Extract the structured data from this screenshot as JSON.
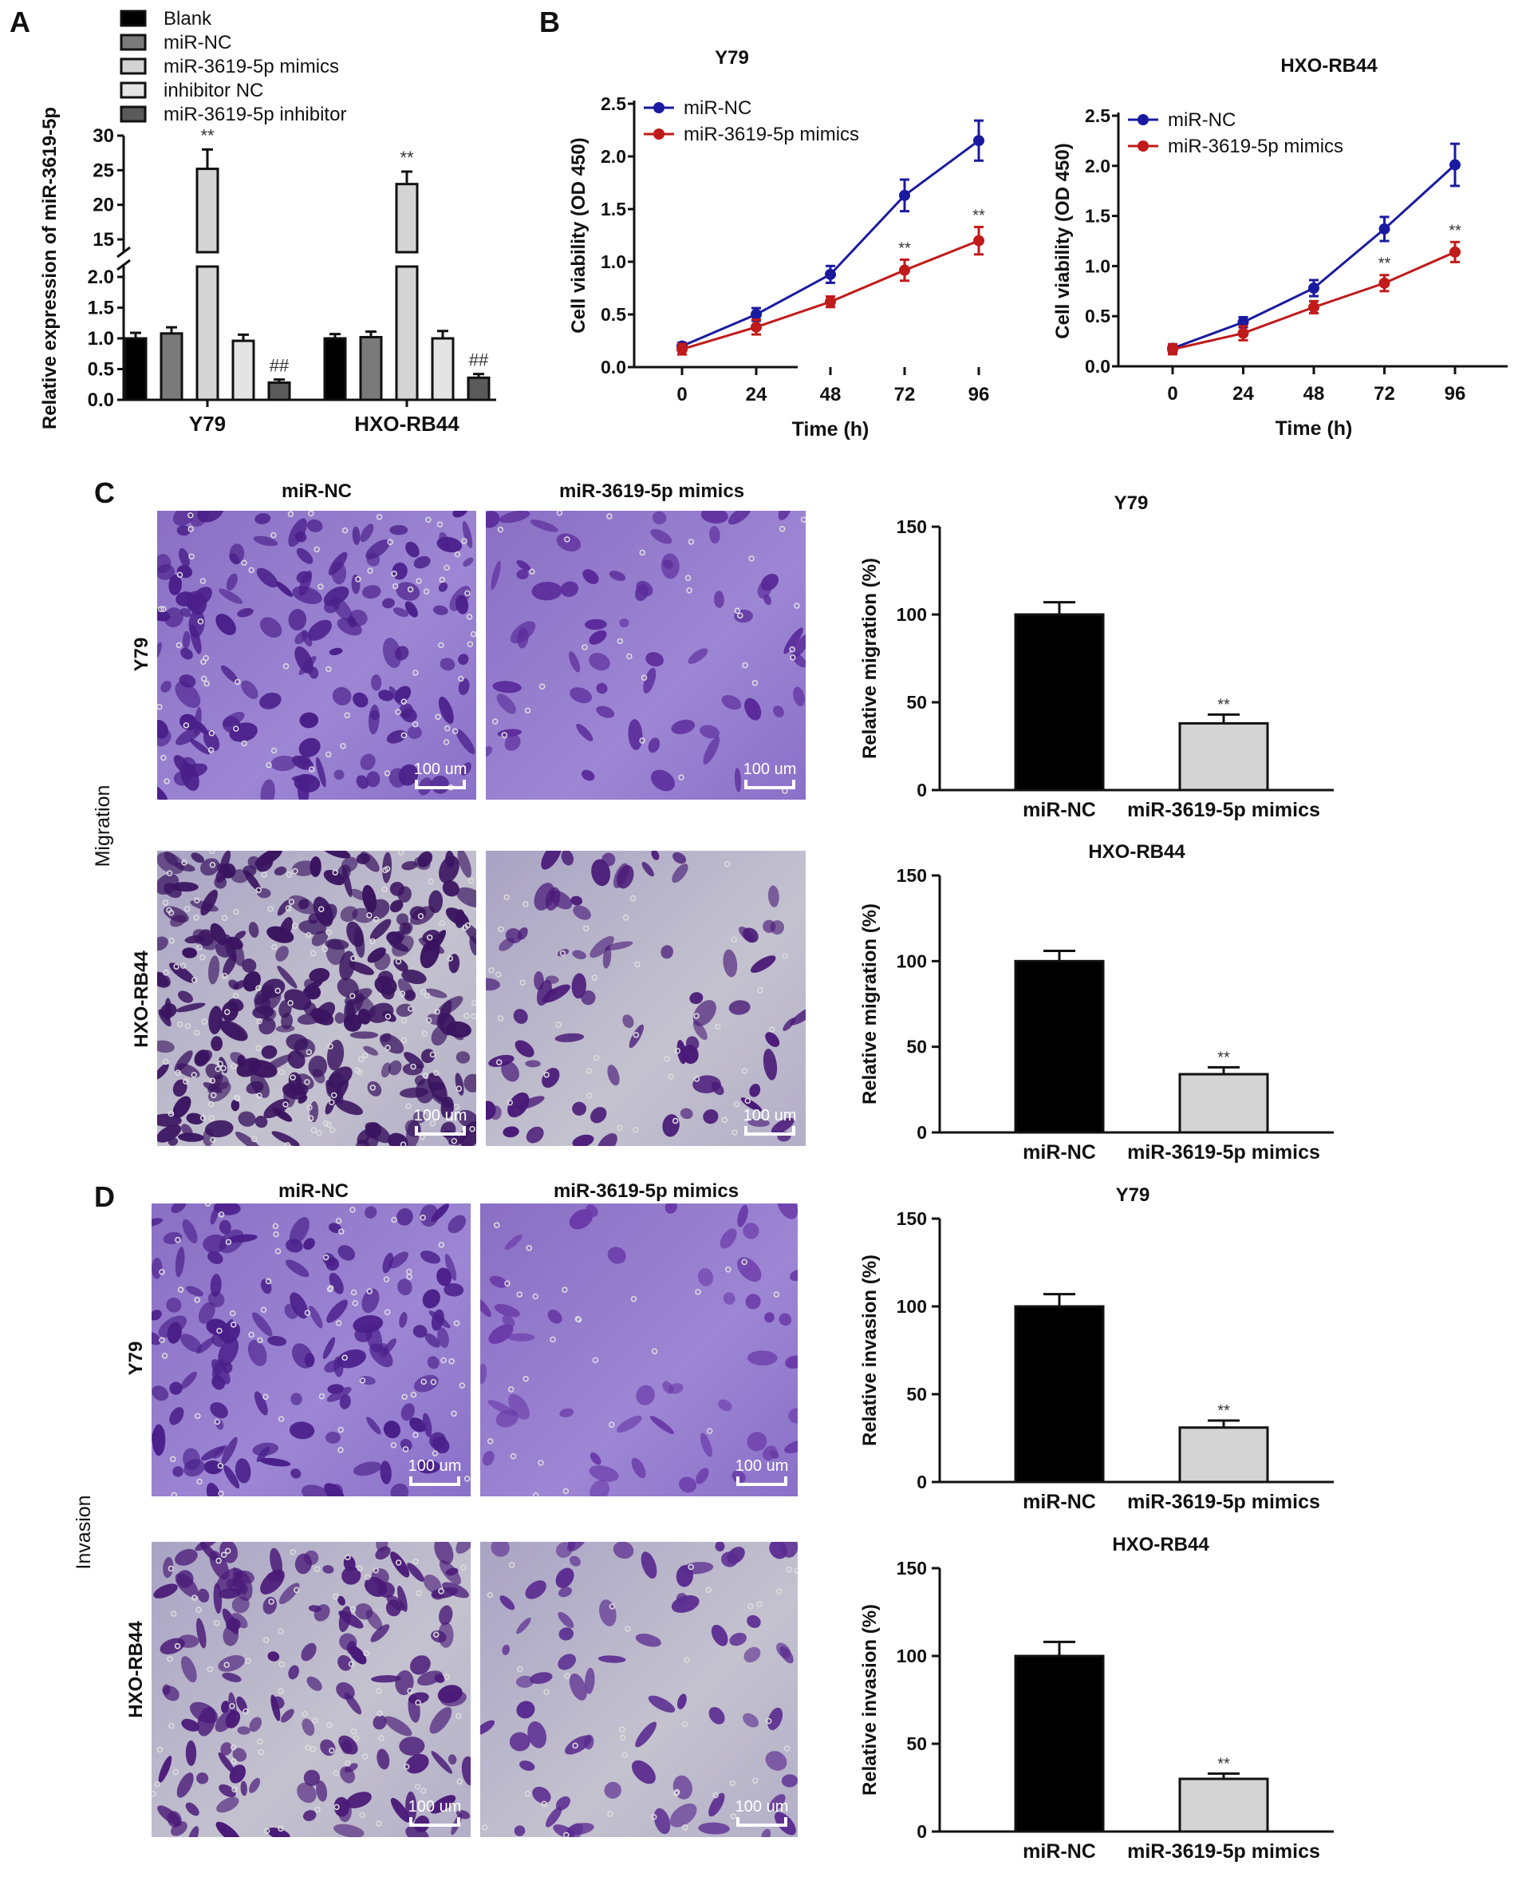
{
  "panel_labels": [
    "A",
    "B",
    "C",
    "D"
  ],
  "chart_data": [
    {
      "id": "A",
      "type": "bar",
      "ylabel": "Relative expression of miR-3619-5p",
      "categories": [
        "Y79",
        "HXO-RB44"
      ],
      "yticks_lower": [
        "0.0",
        "0.5",
        "1.0",
        "1.5",
        "2.0"
      ],
      "yticks_upper": [
        "15",
        "20",
        "25",
        "30"
      ],
      "ylim": [
        0,
        30
      ],
      "axis_break": [
        2,
        15
      ],
      "legend": {
        "placement": "top",
        "entries": [
          "Blank",
          "miR-NC",
          "miR-3619-5p mimics",
          "inhibitor NC",
          "miR-3619-5p inhibitor"
        ]
      },
      "colors": [
        "#000000",
        "#7a7a7a",
        "#d4d4d4",
        "#e4e4e4",
        "#5a5a5a"
      ],
      "series": [
        {
          "name": "Blank",
          "values": [
            1.0,
            1.0
          ],
          "errors": [
            0.09,
            0.07
          ],
          "annotations": [
            "",
            ""
          ]
        },
        {
          "name": "miR-NC",
          "values": [
            1.08,
            1.02
          ],
          "errors": [
            0.1,
            0.09
          ],
          "annotations": [
            "",
            ""
          ]
        },
        {
          "name": "miR-3619-5p mimics",
          "values": [
            25.2,
            23.0
          ],
          "errors": [
            2.8,
            1.8
          ],
          "annotations": [
            "**",
            "**"
          ]
        },
        {
          "name": "inhibitor NC",
          "values": [
            0.96,
            1.0
          ],
          "errors": [
            0.1,
            0.12
          ],
          "annotations": [
            "",
            ""
          ]
        },
        {
          "name": "miR-3619-5p inhibitor",
          "values": [
            0.28,
            0.36
          ],
          "errors": [
            0.05,
            0.06
          ],
          "annotations": [
            "##",
            "##"
          ]
        }
      ]
    },
    {
      "id": "B-Y79",
      "type": "line",
      "title": "Y79",
      "xlabel": "Time (h)",
      "ylabel": "Cell viability (OD 450)",
      "x": [
        0,
        24,
        48,
        72,
        96
      ],
      "xticks": [
        "0",
        "24",
        "48",
        "72",
        "96"
      ],
      "yticks": [
        "0.0",
        "0.5",
        "1.0",
        "1.5",
        "2.0",
        "2.5"
      ],
      "ylim": [
        0,
        2.5
      ],
      "legend": {
        "placement": "top-left"
      },
      "series": [
        {
          "name": "miR-NC",
          "color": "#1a1aa0",
          "values": [
            0.2,
            0.5,
            0.88,
            1.63,
            2.15
          ],
          "errors": [
            0.03,
            0.06,
            0.08,
            0.15,
            0.19
          ],
          "annotations": [
            "",
            "",
            "",
            "",
            ""
          ]
        },
        {
          "name": "miR-3619-5p mimics",
          "color": "#c01a1a",
          "values": [
            0.17,
            0.38,
            0.62,
            0.92,
            1.2
          ],
          "errors": [
            0.05,
            0.07,
            0.05,
            0.1,
            0.13
          ],
          "annotations": [
            "",
            "",
            "",
            "**",
            "**"
          ]
        }
      ]
    },
    {
      "id": "B-HXO",
      "type": "line",
      "title": "HXO-RB44",
      "xlabel": "Time (h)",
      "ylabel": "Cell viability (OD 450)",
      "x": [
        0,
        24,
        48,
        72,
        96
      ],
      "xticks": [
        "0",
        "24",
        "48",
        "72",
        "96"
      ],
      "yticks": [
        "0.0",
        "0.5",
        "1.0",
        "1.5",
        "2.0",
        "2.5"
      ],
      "ylim": [
        0,
        2.5
      ],
      "legend": {
        "placement": "top-left"
      },
      "series": [
        {
          "name": "miR-NC",
          "color": "#1a1aa0",
          "values": [
            0.18,
            0.44,
            0.78,
            1.37,
            2.01
          ],
          "errors": [
            0.04,
            0.05,
            0.08,
            0.12,
            0.21
          ],
          "annotations": [
            "",
            "",
            "",
            "",
            ""
          ]
        },
        {
          "name": "miR-3619-5p mimics",
          "color": "#c01a1a",
          "values": [
            0.17,
            0.33,
            0.59,
            0.83,
            1.14
          ],
          "errors": [
            0.05,
            0.07,
            0.06,
            0.08,
            0.1
          ],
          "annotations": [
            "",
            "",
            "",
            "**",
            "**"
          ]
        }
      ]
    },
    {
      "id": "C-Y79",
      "type": "bar",
      "title": "Y79",
      "ylabel": "Relative migration (%)",
      "categories": [
        "miR-NC",
        "miR-3619-5p mimics"
      ],
      "values": [
        100,
        38
      ],
      "errors": [
        7,
        5
      ],
      "annotations": [
        "",
        "**"
      ],
      "colors": [
        "#000000",
        "#d4d4d4"
      ],
      "yticks": [
        "0",
        "50",
        "100",
        "150"
      ],
      "ylim": [
        0,
        150
      ]
    },
    {
      "id": "C-HXO",
      "type": "bar",
      "title": "HXO-RB44",
      "ylabel": "Relative migration (%)",
      "categories": [
        "miR-NC",
        "miR-3619-5p mimics"
      ],
      "values": [
        100,
        34
      ],
      "errors": [
        6,
        4
      ],
      "annotations": [
        "",
        "**"
      ],
      "colors": [
        "#000000",
        "#d4d4d4"
      ],
      "yticks": [
        "0",
        "50",
        "100",
        "150"
      ],
      "ylim": [
        0,
        150
      ]
    },
    {
      "id": "D-Y79",
      "type": "bar",
      "title": "Y79",
      "ylabel": "Relative invasion (%)",
      "categories": [
        "miR-NC",
        "miR-3619-5p mimics"
      ],
      "values": [
        100,
        31
      ],
      "errors": [
        7,
        4
      ],
      "annotations": [
        "",
        "**"
      ],
      "colors": [
        "#000000",
        "#d4d4d4"
      ],
      "yticks": [
        "0",
        "50",
        "100",
        "150"
      ],
      "ylim": [
        0,
        150
      ]
    },
    {
      "id": "D-HXO",
      "type": "bar",
      "title": "HXO-RB44",
      "ylabel": "Relative invasion (%)",
      "categories": [
        "miR-NC",
        "miR-3619-5p mimics"
      ],
      "values": [
        100,
        30
      ],
      "errors": [
        8,
        3
      ],
      "annotations": [
        "",
        "**"
      ],
      "colors": [
        "#000000",
        "#d4d4d4"
      ],
      "yticks": [
        "0",
        "50",
        "100",
        "150"
      ],
      "ylim": [
        0,
        150
      ]
    }
  ],
  "micrographs": {
    "migration": {
      "side_label": "Migration",
      "columns": [
        "miR-NC",
        "miR-3619-5p mimics"
      ],
      "rows": [
        "Y79",
        "HXO-RB44"
      ],
      "scale_bar": "100 um"
    },
    "invasion": {
      "side_label": "Invasion",
      "columns": [
        "miR-NC",
        "miR-3619-5p mimics"
      ],
      "rows": [
        "Y79",
        "HXO-RB44"
      ],
      "scale_bar": "100 um"
    }
  }
}
